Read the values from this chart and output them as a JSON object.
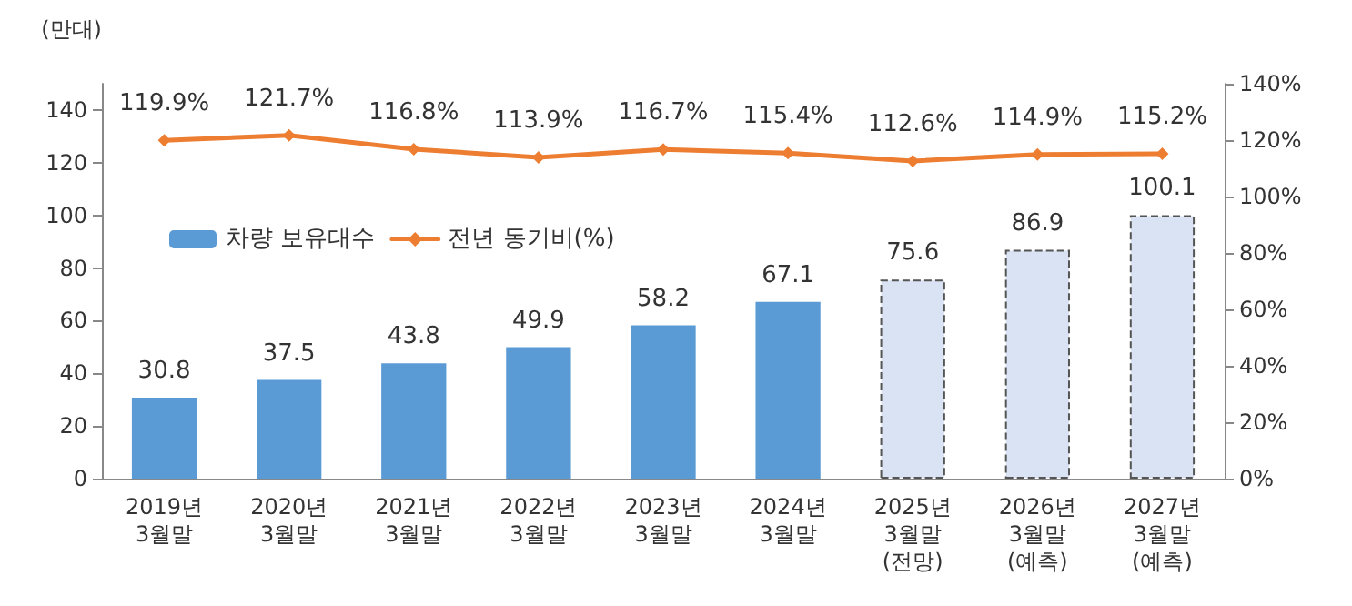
{
  "chart_data": {
    "type": "bar",
    "ylabel": "(만대)",
    "categories": [
      "2019년\n3월말",
      "2020년\n3월말",
      "2021년\n3월말",
      "2022년\n3월말",
      "2023년\n3월말",
      "2024년\n3월말",
      "2025년\n3월말\n(전망)",
      "2026년\n3월말\n(예측)",
      "2027년\n3월말\n(예측)"
    ],
    "series": [
      {
        "name": "차량 보유대수",
        "color": "#5b9bd5",
        "colors": [
          "#5b9bd5",
          "#5b9bd5",
          "#5b9bd5",
          "#5b9bd5",
          "#5b9bd5",
          "#5b9bd5",
          "#dae3f3",
          "#dae3f3",
          "#dae3f3"
        ],
        "values": [
          30.8,
          37.5,
          43.8,
          49.9,
          58.2,
          67.1,
          75.6,
          86.9,
          100.1
        ],
        "value_labels": [
          "30.8",
          "37.5",
          "43.8",
          "49.9",
          "58.2",
          "67.1",
          "75.6",
          "86.9",
          "100.1"
        ]
      },
      {
        "name": "전년 동기비(%)",
        "type": "line",
        "axis": "y2",
        "color": "#ed7d31",
        "marker": "diamond",
        "values": [
          119.9,
          121.7,
          116.8,
          113.9,
          116.7,
          115.4,
          112.6,
          114.9,
          115.2
        ],
        "value_labels": [
          "119.9%",
          "121.7%",
          "116.8%",
          "113.9%",
          "116.7%",
          "115.4%",
          "112.6%",
          "114.9%",
          "115.2%"
        ]
      }
    ],
    "ylim": [
      0,
      150
    ],
    "yticks": [
      0,
      20,
      40,
      60,
      80,
      100,
      120,
      140
    ],
    "y2lim": [
      0,
      140
    ],
    "y2ticks": [
      {
        "value": 0,
        "label": "0%"
      },
      {
        "value": 20,
        "label": "20%"
      },
      {
        "value": 40,
        "label": "40%"
      },
      {
        "value": 60,
        "label": "60%"
      },
      {
        "value": 80,
        "label": "80%"
      },
      {
        "value": 100,
        "label": "100%"
      },
      {
        "value": 120,
        "label": "120%"
      },
      {
        "value": 140,
        "label": "140%"
      }
    ],
    "grid": false,
    "legend": "left"
  }
}
